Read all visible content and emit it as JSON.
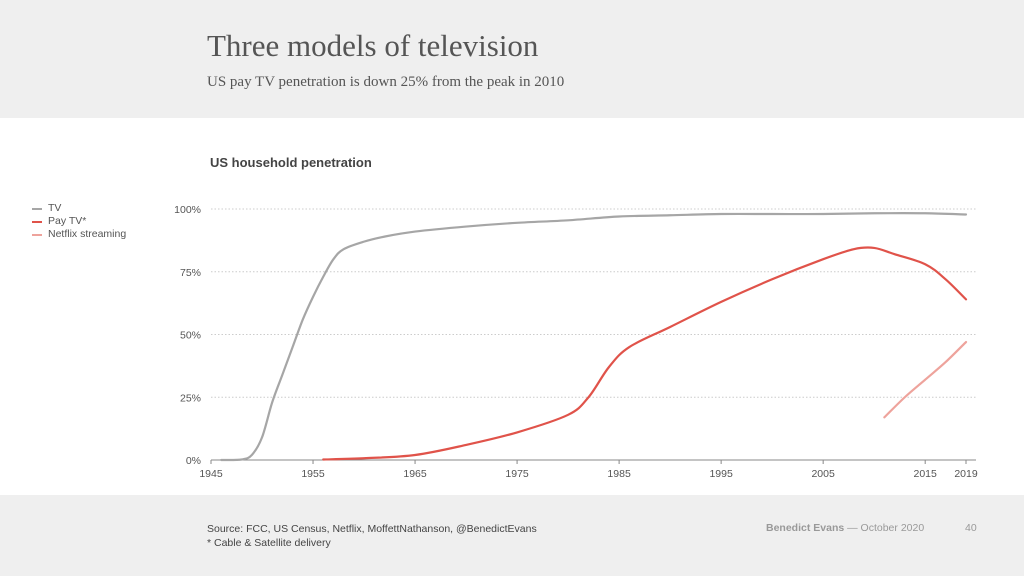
{
  "header": {
    "title": "Three models of television",
    "subtitle": "US pay TV penetration is down 25% from the peak in 2010"
  },
  "footer": {
    "source": "Source: FCC, US Census, Netflix, MoffettNathanson, @BenedictEvans",
    "note": "* Cable & Satellite delivery",
    "author": "Benedict Evans",
    "separator": "—",
    "date": "October 2020",
    "page": "40"
  },
  "chart_data": {
    "type": "line",
    "title": "US household penetration",
    "xlabel": "",
    "ylabel": "",
    "xlim": [
      1945,
      2019
    ],
    "ylim": [
      0,
      100
    ],
    "xticks": [
      "1945",
      "1955",
      "1965",
      "1975",
      "1985",
      "1995",
      "2005",
      "2015",
      "2019"
    ],
    "yticks": [
      "0%",
      "25%",
      "50%",
      "75%",
      "100%"
    ],
    "grid": "horizontal dotted",
    "legend_position": "left",
    "series": [
      {
        "name": "TV",
        "color": "#a6a6a6",
        "x": [
          1946,
          1948,
          1949,
          1950,
          1951,
          1952,
          1953,
          1954,
          1955,
          1956,
          1957,
          1958,
          1960,
          1962,
          1965,
          1970,
          1975,
          1980,
          1985,
          1990,
          1995,
          2000,
          2005,
          2010,
          2015,
          2019
        ],
        "y": [
          0,
          0.2,
          2,
          9,
          23,
          34,
          45,
          56,
          65,
          73,
          80,
          84,
          87,
          89,
          91,
          93,
          94.5,
          95.5,
          97,
          97.5,
          98,
          98,
          98,
          98.3,
          98.3,
          97.8
        ]
      },
      {
        "name": "Pay TV*",
        "color": "#e0534a",
        "x": [
          1956,
          1960,
          1965,
          1970,
          1975,
          1980,
          1982,
          1984,
          1986,
          1990,
          1995,
          2000,
          2005,
          2008,
          2010,
          2012,
          2015,
          2017,
          2019
        ],
        "y": [
          0.2,
          0.7,
          2,
          6,
          11,
          18,
          25,
          37,
          45,
          53,
          63,
          72,
          80,
          84,
          84.5,
          82,
          78,
          72,
          64
        ]
      },
      {
        "name": "Netflix streaming",
        "color": "#eea39c",
        "x": [
          2011,
          2013,
          2015,
          2017,
          2019
        ],
        "y": [
          17,
          25,
          32,
          39,
          47
        ]
      }
    ]
  }
}
